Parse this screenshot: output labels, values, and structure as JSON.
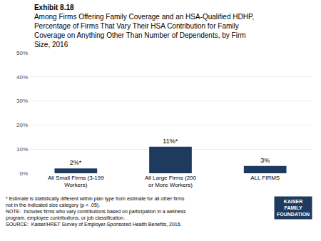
{
  "chart_data": {
    "type": "bar",
    "title": "Exhibit 8.18",
    "subtitle": "Among Firms Offering Family Coverage and an HSA-Qualified HDHP,\nPercentage of Firms That Vary Their HSA Contribution for Family\nCoverage on Anything Other Than Number of Dependents, by Firm\nSize, 2016",
    "categories": [
      "All Small Firms (3-199 Workers)",
      "All Large Firms (200 or More Workers)",
      "ALL FIRMS"
    ],
    "values": [
      2,
      11,
      3
    ],
    "value_labels": [
      "2%*",
      "11%*",
      "3%"
    ],
    "data_labels": true,
    "color": "#1e3a5f",
    "ylim": [
      0,
      50
    ],
    "yticks": [
      {
        "value": 0,
        "label": "0%"
      },
      {
        "value": 10,
        "label": "10%"
      },
      {
        "value": 20,
        "label": "20%"
      },
      {
        "value": 30,
        "label": "30%"
      },
      {
        "value": 40,
        "label": "40%"
      },
      {
        "value": 50,
        "label": "50%"
      }
    ],
    "grid": true,
    "annotations": [
      "* Estimate is statistically different within plan type from estimate for all other firms not in the indicated size category (p < .05).",
      "NOTE:  Includes firms who vary contributions based on participation in a wellness program, employee contributions, or job classification.",
      "SOURCE:  Kaiser/HRET Survey of Employer-Sponsored Health Benefits, 2016.",
      "KAISER",
      "FAMILY",
      "FOUNDATION"
    ]
  }
}
